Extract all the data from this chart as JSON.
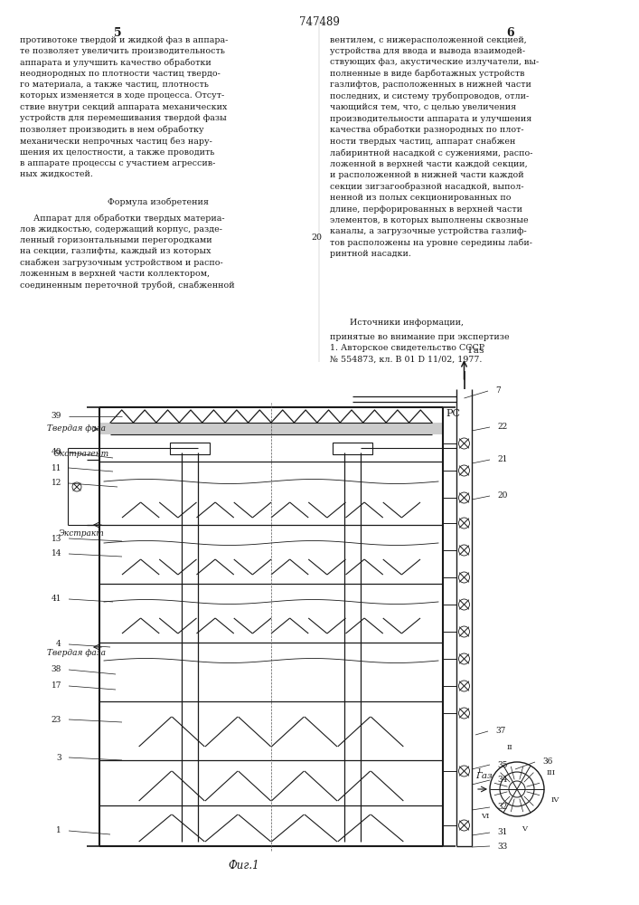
{
  "patent_number": "747489",
  "col_left": "5",
  "col_right": "6",
  "fig_label": "Фиг.1",
  "text_left_top": "противотоке твердой и жидкой фаз в аппара-\nте позволяет увеличить производительность\nаппарата и улучшить качество обработки\nнеоднородных по плотности частиц твердо-\nго материала, а также частиц, плотность\nкоторых изменяется в ходе процесса. Отсут-\nствие внутри секций аппарата механических\nустройств для перемешивания твердой фазы\nпозволяет производить в нем обработку\nмеханически непрочных частиц без нару-\nшения их целостности, а также проводить\nв аппарате процессы с участием агрессив-\nных жидкостей.",
  "text_left_formula_header": "Формула изобретения",
  "text_left_formula": "     Аппарат для обработки твердых материа-\nлов жидкостью, содержащий корпус, разде-\nленный горизонтальными перегородками\nна секции, газлифты, каждый из которых\nснабжен загрузочным устройством и распо-\nложенным в верхней части коллектором,\nсоединенным переточной трубой, снабженной",
  "text_right_top": "вентилем, с нижерасположенной секцией,\nустройства для ввода и вывода взаимодей-\nствующих фаз, акустические излучатели, вы-\nполненные в виде барботажных устройств\nгазлифтов, расположенных в нижней части\nпоследних, и систему трубопроводов, отли-\nчающийся тем, что, с целью увеличения\nпроизводительности аппарата и улучшения\nкачества обработки разнородных по плот-\nности твердых частиц, аппарат снабжен\nлабиринтной насадкой с сужениями, распо-\nложенной в верхней части каждой секции,\nи расположенной в нижней части каждой\nсекции зигзагообразной насадкой, выпол-\nненной из полых секционированных по\nдлине, перфорированных в верхней части\nэлементов, в которых выполнены сквозные\nканалы, а загрузочные устройства газлиф-\nтов расположены на уровне середины лаби-\nринтной насадки.",
  "text_right_sources_header": "Источники информации,",
  "text_right_sources": "принятые во внимание при экспертизе\n1. Авторское свидетельство СССР\n№ 554873, кл. В 01 D 11/02, 1977.",
  "bg_color": "#ffffff",
  "text_color": "#1a1a1a",
  "line_color": "#1a1a1a"
}
